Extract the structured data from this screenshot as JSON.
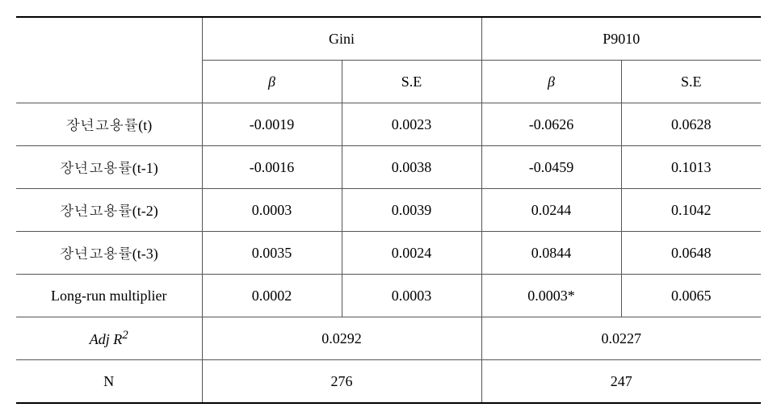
{
  "header": {
    "group1": "Gini",
    "group2": "P9010",
    "beta": "β",
    "se": "S.E"
  },
  "rows": {
    "r1": {
      "label": "장년고용률(t)",
      "g1b": "-0.0019",
      "g1s": "0.0023",
      "g2b": "-0.0626",
      "g2s": "0.0628"
    },
    "r2": {
      "label": "장년고용률(t-1)",
      "g1b": "-0.0016",
      "g1s": "0.0038",
      "g2b": "-0.0459",
      "g2s": "0.1013"
    },
    "r3": {
      "label": "장년고용률(t-2)",
      "g1b": "0.0003",
      "g1s": "0.0039",
      "g2b": "0.0244",
      "g2s": "0.1042"
    },
    "r4": {
      "label": "장년고용률(t-3)",
      "g1b": "0.0035",
      "g1s": "0.0024",
      "g2b": "0.0844",
      "g2s": "0.0648"
    },
    "r5": {
      "label": "Long-run multiplier",
      "g1b": "0.0002",
      "g1s": "0.0003",
      "g2b": "0.0003*",
      "g2s": "0.0065"
    }
  },
  "summary": {
    "adjr2_label_pre": "Adj R",
    "adjr2_label_sup": "2",
    "adjr2_g1": "0.0292",
    "adjr2_g2": "0.0227",
    "n_label": "N",
    "n_g1": "276",
    "n_g2": "247"
  }
}
